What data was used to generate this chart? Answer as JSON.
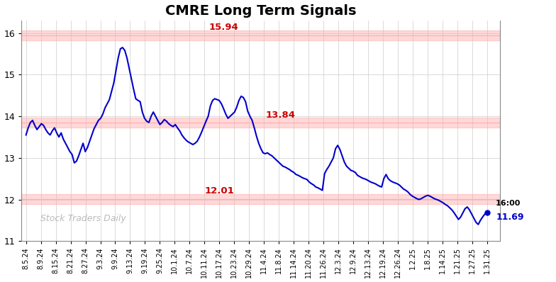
{
  "title": "CMRE Long Term Signals",
  "title_fontsize": 14,
  "line_color": "#0000cc",
  "line_width": 1.5,
  "background_color": "#ffffff",
  "grid_color": "#cccccc",
  "hline_color": "#ffaaaa",
  "hline_values": [
    15.94,
    13.84,
    12.01
  ],
  "hline_label_color": "#cc0000",
  "ylim": [
    11.0,
    16.3
  ],
  "yticks": [
    11,
    12,
    13,
    14,
    15,
    16
  ],
  "watermark": "Stock Traders Daily",
  "watermark_color": "#aaaaaa",
  "endpoint_label": "16:00",
  "endpoint_value": "11.69",
  "endpoint_dot_color": "#0000cc",
  "xtick_labels": [
    "8.5.24",
    "8.9.24",
    "8.15.24",
    "8.21.24",
    "8.27.24",
    "9.3.24",
    "9.9.24",
    "9.13.24",
    "9.19.24",
    "9.25.24",
    "10.1.24",
    "10.7.24",
    "10.11.24",
    "10.17.24",
    "10.23.24",
    "10.29.24",
    "11.4.24",
    "11.8.24",
    "11.14.24",
    "11.20.24",
    "11.26.24",
    "12.3.24",
    "12.9.24",
    "12.13.24",
    "12.19.24",
    "12.26.24",
    "1.2.25",
    "1.8.25",
    "1.14.25",
    "1.21.25",
    "1.27.25",
    "1.31.25"
  ],
  "prices": [
    13.55,
    13.72,
    13.85,
    13.9,
    13.78,
    13.68,
    13.75,
    13.82,
    13.78,
    13.68,
    13.6,
    13.55,
    13.65,
    13.72,
    13.6,
    13.5,
    13.6,
    13.45,
    13.35,
    13.25,
    13.15,
    13.08,
    12.88,
    12.92,
    13.05,
    13.2,
    13.35,
    13.15,
    13.25,
    13.4,
    13.55,
    13.7,
    13.8,
    13.9,
    13.95,
    14.05,
    14.2,
    14.3,
    14.4,
    14.6,
    14.8,
    15.1,
    15.4,
    15.62,
    15.65,
    15.58,
    15.4,
    15.15,
    14.9,
    14.65,
    14.42,
    14.38,
    14.35,
    14.1,
    13.95,
    13.88,
    13.85,
    14.0,
    14.1,
    14.0,
    13.9,
    13.8,
    13.85,
    13.92,
    13.88,
    13.82,
    13.78,
    13.75,
    13.8,
    13.72,
    13.65,
    13.55,
    13.48,
    13.42,
    13.38,
    13.35,
    13.32,
    13.35,
    13.4,
    13.5,
    13.62,
    13.75,
    13.88,
    14.0,
    14.25,
    14.38,
    14.42,
    14.4,
    14.38,
    14.3,
    14.18,
    14.05,
    13.95,
    14.0,
    14.05,
    14.1,
    14.22,
    14.38,
    14.48,
    14.45,
    14.35,
    14.12,
    14.0,
    13.9,
    13.72,
    13.52,
    13.35,
    13.22,
    13.12,
    13.1,
    13.12,
    13.08,
    13.05,
    13.0,
    12.95,
    12.9,
    12.85,
    12.8,
    12.78,
    12.75,
    12.72,
    12.68,
    12.65,
    12.6,
    12.58,
    12.55,
    12.52,
    12.5,
    12.48,
    12.42,
    12.38,
    12.35,
    12.3,
    12.28,
    12.25,
    12.22,
    12.62,
    12.72,
    12.8,
    12.9,
    13.0,
    13.22,
    13.3,
    13.2,
    13.05,
    12.9,
    12.8,
    12.75,
    12.7,
    12.68,
    12.65,
    12.58,
    12.55,
    12.52,
    12.5,
    12.48,
    12.45,
    12.42,
    12.4,
    12.38,
    12.35,
    12.32,
    12.3,
    12.5,
    12.6,
    12.5,
    12.45,
    12.42,
    12.4,
    12.38,
    12.35,
    12.3,
    12.25,
    12.22,
    12.18,
    12.12,
    12.08,
    12.05,
    12.02,
    12.0,
    12.02,
    12.05,
    12.08,
    12.1,
    12.08,
    12.05,
    12.02,
    12.0,
    11.98,
    11.95,
    11.92,
    11.88,
    11.85,
    11.8,
    11.75,
    11.68,
    11.6,
    11.52,
    11.58,
    11.68,
    11.78,
    11.82,
    11.75,
    11.65,
    11.55,
    11.45,
    11.4,
    11.5,
    11.58,
    11.65,
    11.69
  ]
}
